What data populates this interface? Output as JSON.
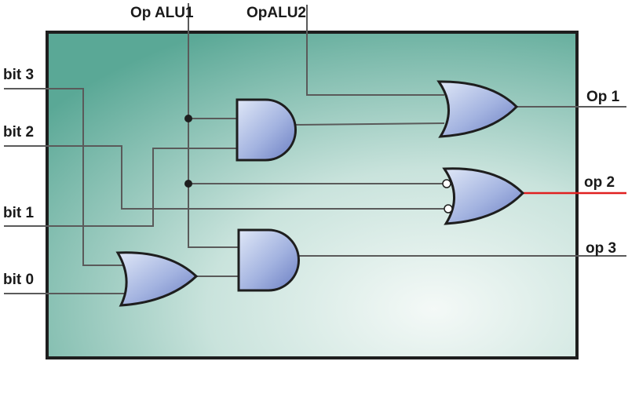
{
  "diagram": {
    "inputs": {
      "bit3": "bit 3",
      "bit2": "bit 2",
      "bit1": "bit 1",
      "bit0": "bit 0"
    },
    "controls": {
      "op_alu1": "Op ALU1",
      "op_alu2": "OpALU2"
    },
    "outputs": {
      "op1": "Op 1",
      "op2": "op 2",
      "op3": "op 3"
    },
    "gates": {
      "and_top": "AND",
      "and_bottom": "AND",
      "or_left": "OR",
      "or_top_right": "OR",
      "or_mid_right": "OR"
    }
  },
  "colors": {
    "box_fill_dark": "#5aa896",
    "box_fill_light": "#f2f8f6",
    "gate_fill_light": "#d6e0f4",
    "gate_fill_dark": "#7486c6",
    "wire": "#5a5a5a",
    "highlight_wire": "#e02020"
  }
}
